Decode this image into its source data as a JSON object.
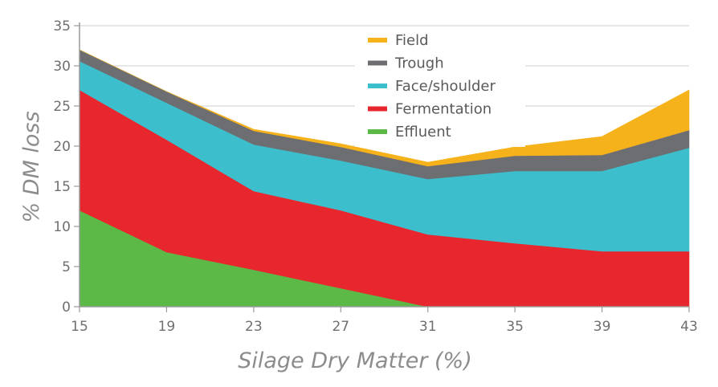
{
  "chart_data": {
    "type": "area",
    "stacked": true,
    "x": [
      15,
      19,
      23,
      27,
      31,
      35,
      39,
      43
    ],
    "xlabel": "Silage Dry Matter (%)",
    "ylabel": "% DM loss",
    "xlim": [
      15,
      43
    ],
    "ylim": [
      0,
      35
    ],
    "xticks": [
      "15",
      "19",
      "23",
      "27",
      "31",
      "35",
      "39",
      "43"
    ],
    "yticks": [
      "0",
      "5",
      "10",
      "15",
      "20",
      "25",
      "30",
      "35"
    ],
    "grid": "horizontal",
    "legend_position": "top-center",
    "series": [
      {
        "name": "Effluent",
        "color": "#5cb947",
        "values": [
          12,
          6.8,
          4.6,
          2.3,
          0,
          0,
          0,
          0
        ]
      },
      {
        "name": "Fermentation",
        "color": "#e8262d",
        "values": [
          15,
          14,
          9.8,
          9.7,
          9,
          7.9,
          6.9,
          6.9
        ]
      },
      {
        "name": "Face/shoulder",
        "color": "#3dbecc",
        "values": [
          3.6,
          4.6,
          5.8,
          6.2,
          6.9,
          9,
          10,
          12.9
        ]
      },
      {
        "name": "Trough",
        "color": "#6d6e71",
        "values": [
          1.4,
          1.4,
          1.7,
          1.7,
          1.6,
          1.9,
          2,
          2.2
        ]
      },
      {
        "name": "Field",
        "color": "#f6b21b",
        "values": [
          0,
          0,
          0.2,
          0.4,
          0.5,
          1.1,
          2.3,
          5
        ]
      }
    ]
  }
}
